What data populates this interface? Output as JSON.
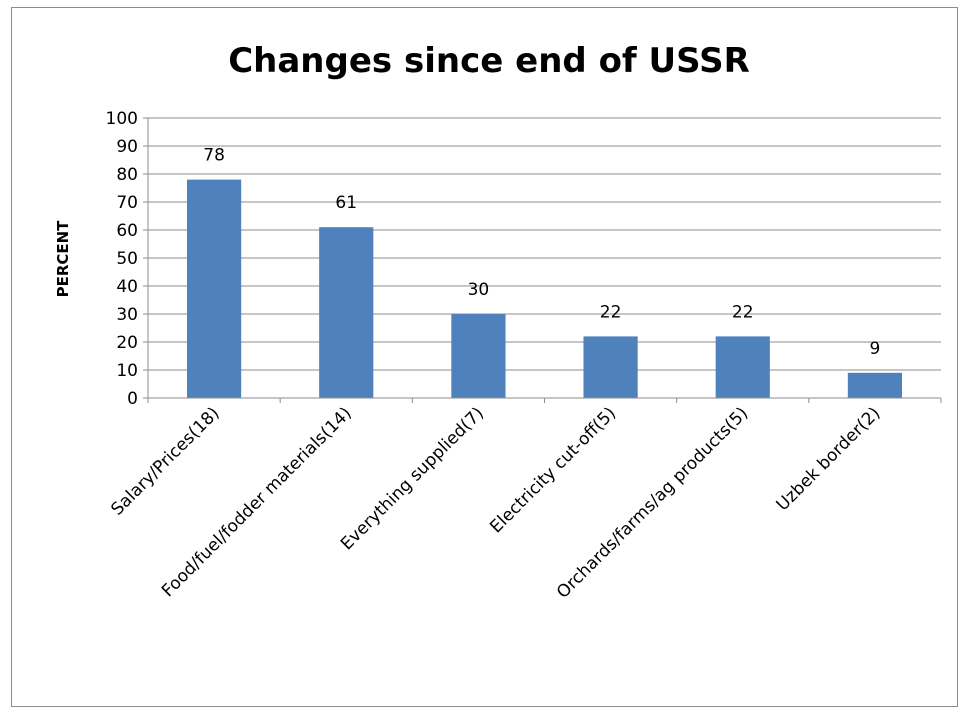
{
  "chart_data": {
    "type": "bar",
    "title": "Changes since end of USSR",
    "xlabel": "",
    "ylabel": "PERCENT",
    "ylim": [
      0,
      100
    ],
    "y_ticks": [
      "0",
      "10",
      "20",
      "30",
      "40",
      "50",
      "60",
      "70",
      "80",
      "90",
      "100"
    ],
    "grid": true,
    "legend": "none",
    "bar_color": "#4f81bd",
    "categories": [
      "Salary/Prices(18)",
      "Food/fuel/fodder materials(14)",
      "Everything supplied(7)",
      "Electricity cut-off(5)",
      "Orchards/farms/ag products(5)",
      "Uzbek border(2)"
    ],
    "values": [
      78,
      61,
      30,
      22,
      22,
      9
    ],
    "data_labels": [
      "78",
      "61",
      "30",
      "22",
      "22",
      "9"
    ]
  }
}
